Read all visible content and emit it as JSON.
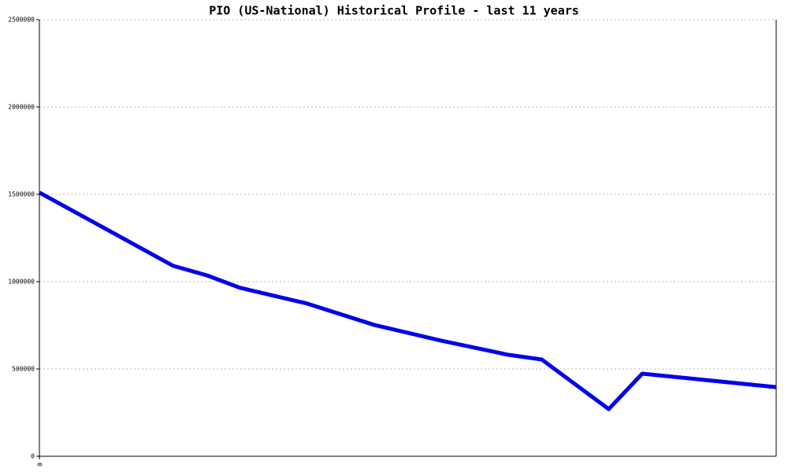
{
  "chart_data": {
    "type": "line",
    "title": "PIO (US-National) Historical Profile - last 11 years",
    "x": [
      0,
      2,
      2.5,
      3,
      4,
      5,
      6,
      7,
      7.5,
      8.5,
      9,
      11
    ],
    "series": [
      {
        "color": "#0000ee",
        "values": [
          1510000,
          1090000,
          1036000,
          964000,
          874000,
          752000,
          662000,
          581000,
          554000,
          270000,
          473000,
          396000
        ]
      }
    ],
    "xlim": [
      0,
      11
    ],
    "xticks": [
      0
    ],
    "ylim": [
      0,
      2500000
    ],
    "yticks": [
      0,
      500000,
      1000000,
      1500000,
      2000000,
      2500000
    ],
    "grid": true
  }
}
